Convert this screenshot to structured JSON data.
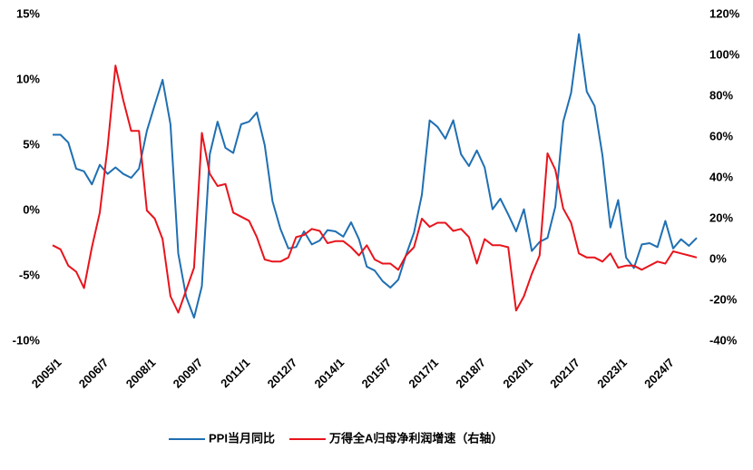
{
  "chart_data": {
    "type": "line",
    "categories": [
      "2005/1",
      null,
      null,
      null,
      null,
      null,
      "2006/7",
      null,
      null,
      null,
      null,
      null,
      "2008/1",
      null,
      null,
      null,
      null,
      null,
      "2009/7",
      null,
      null,
      null,
      null,
      null,
      "2011/1",
      null,
      null,
      null,
      null,
      null,
      "2012/7",
      null,
      null,
      null,
      null,
      null,
      "2014/1",
      null,
      null,
      null,
      null,
      null,
      "2015/7",
      null,
      null,
      null,
      null,
      null,
      "2017/1",
      null,
      null,
      null,
      null,
      null,
      "2018/7",
      null,
      null,
      null,
      null,
      null,
      "2020/1",
      null,
      null,
      null,
      null,
      null,
      "2021/7",
      null,
      null,
      null,
      null,
      null,
      "2023/1",
      null,
      null,
      null,
      null,
      null,
      "2024/7",
      null,
      null,
      null,
      null
    ],
    "series": [
      {
        "name": "PPI当月同比",
        "color": "#1f6fb2",
        "axis": "y",
        "values": [
          5.8,
          5.8,
          5.2,
          3.2,
          3.0,
          2.0,
          3.5,
          2.8,
          3.3,
          2.8,
          2.5,
          3.2,
          6.1,
          8.1,
          10.0,
          6.6,
          -3.3,
          -6.6,
          -8.2,
          -5.8,
          4.3,
          6.8,
          4.8,
          4.4,
          6.6,
          6.8,
          7.5,
          5.0,
          0.7,
          -1.4,
          -2.9,
          -2.8,
          -1.6,
          -2.6,
          -2.3,
          -1.5,
          -1.6,
          -2.0,
          -0.9,
          -2.2,
          -4.3,
          -4.6,
          -5.4,
          -5.9,
          -5.3,
          -3.4,
          -1.7,
          1.2,
          6.9,
          6.4,
          5.5,
          6.9,
          4.3,
          3.4,
          4.6,
          3.3,
          0.1,
          0.9,
          -0.3,
          -1.6,
          0.1,
          -3.1,
          -2.4,
          -2.1,
          0.3,
          6.8,
          9.0,
          13.5,
          9.1,
          8.0,
          4.2,
          -1.3,
          0.8,
          -3.6,
          -4.4,
          -2.6,
          -2.5,
          -2.8,
          -0.8,
          -2.9,
          -2.2,
          -2.7,
          -2.1
        ]
      },
      {
        "name": "万得全A归母净利润增速（右轴）",
        "color": "#e8141c",
        "axis": "y2",
        "values": [
          7,
          5,
          -3,
          -6,
          -14,
          6,
          23,
          55,
          95,
          78,
          63,
          63,
          24,
          20,
          10,
          -18,
          -26,
          -15,
          -4,
          62,
          42,
          36,
          37,
          23,
          21,
          19,
          11,
          0,
          -1,
          -1,
          1,
          11,
          12,
          15,
          14,
          8,
          9,
          9,
          6,
          2,
          7,
          0,
          -2,
          -2,
          -5,
          2,
          6,
          20,
          16,
          18,
          18,
          14,
          15,
          11,
          -2,
          10,
          7,
          7,
          6,
          -25,
          -18,
          -7,
          2,
          52,
          44,
          25,
          18,
          3,
          1,
          1,
          -1,
          3,
          -4,
          -3,
          -3,
          -5,
          -3,
          -1,
          -2,
          4,
          3,
          2,
          1
        ]
      }
    ],
    "ylim": [
      -10,
      15
    ],
    "yticks": [
      {
        "value": -10,
        "label": "-10%"
      },
      {
        "value": -5,
        "label": "-5%"
      },
      {
        "value": 0,
        "label": "0%"
      },
      {
        "value": 5,
        "label": "5%"
      },
      {
        "value": 10,
        "label": "10%"
      },
      {
        "value": 15,
        "label": "15%"
      }
    ],
    "y2lim": [
      -40,
      120
    ],
    "y2ticks": [
      {
        "value": -40,
        "label": "-40%"
      },
      {
        "value": -20,
        "label": "-20%"
      },
      {
        "value": 0,
        "label": "0%"
      },
      {
        "value": 20,
        "label": "20%"
      },
      {
        "value": 40,
        "label": "40%"
      },
      {
        "value": 60,
        "label": "60%"
      },
      {
        "value": 80,
        "label": "80%"
      },
      {
        "value": 100,
        "label": "100%"
      },
      {
        "value": 120,
        "label": "120%"
      }
    ],
    "legend": "bottom"
  }
}
